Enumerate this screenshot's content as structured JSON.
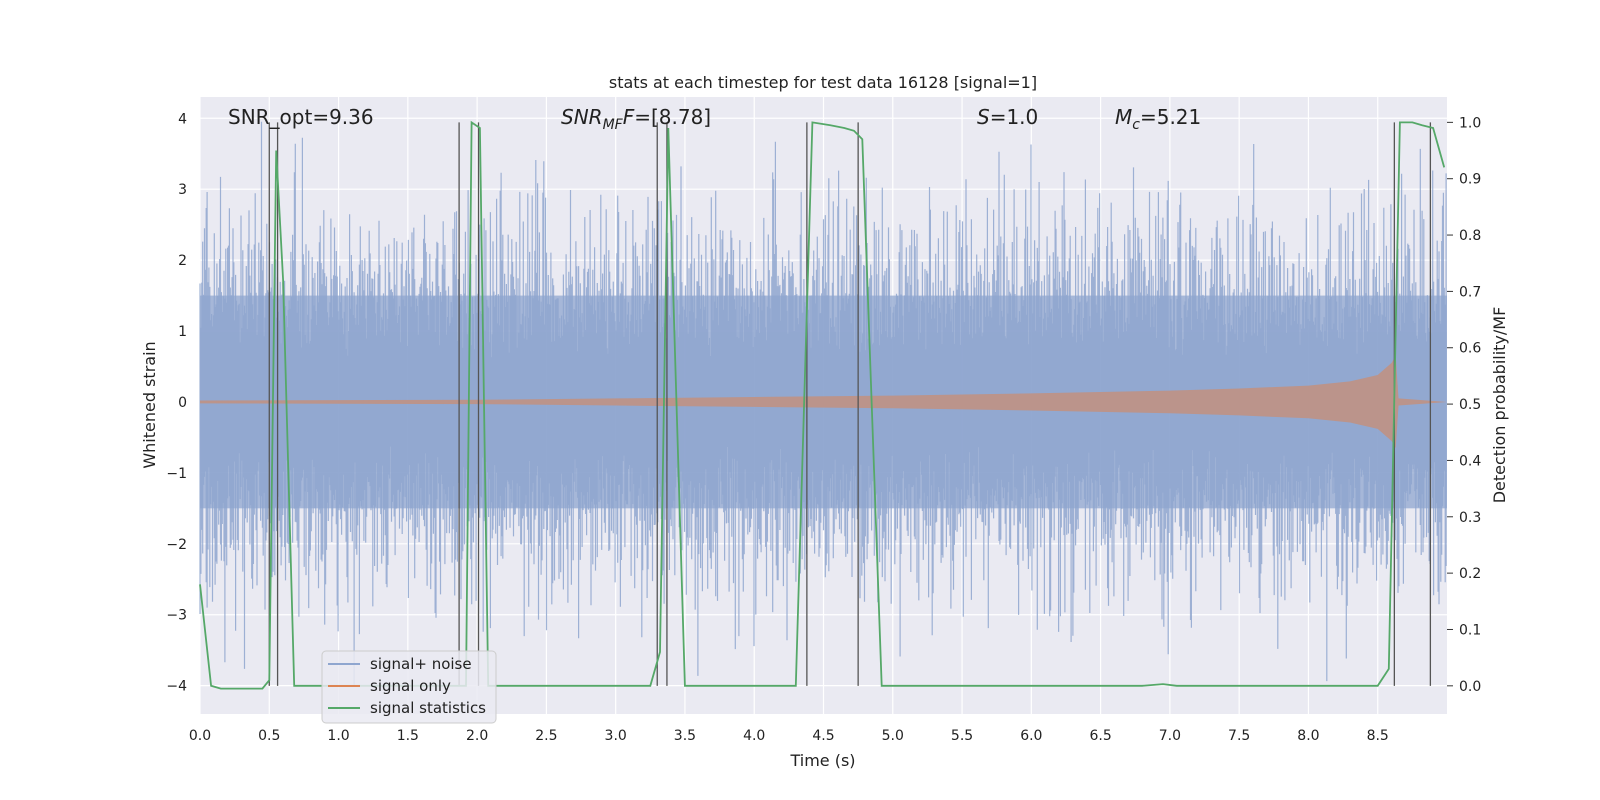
{
  "chart_data": {
    "type": "line",
    "title": "stats at each timestep for test data 16128 [signal=1]",
    "xlabel": "Time (s)",
    "ylabel": "Whitened strain",
    "ylabel_right": "Detection probability/MF",
    "xlim": [
      0.0,
      9.0
    ],
    "ylim": [
      -4.4,
      4.3
    ],
    "ylim_right": [
      -0.05,
      1.045
    ],
    "x_ticks": [
      "0.0",
      "0.5",
      "1.0",
      "1.5",
      "2.0",
      "2.5",
      "3.0",
      "3.5",
      "4.0",
      "4.5",
      "5.0",
      "5.5",
      "6.0",
      "6.5",
      "7.0",
      "7.5",
      "8.0",
      "8.5"
    ],
    "y_ticks": [
      "4",
      "3",
      "2",
      "1",
      "0",
      "−1",
      "−2",
      "−3",
      "−4"
    ],
    "y_ticks_right": [
      "1.0",
      "0.9",
      "0.8",
      "0.7",
      "0.6",
      "0.5",
      "0.4",
      "0.3",
      "0.2",
      "0.1",
      "0.0"
    ],
    "grid": true,
    "legend_position": "lower-left",
    "annotations": {
      "snr_opt": "SNR_opt=9.36",
      "snr_mf_label": "SNR",
      "snr_mf_sub": "MF",
      "snr_mf_value": "=[8.78]",
      "s_label": "S",
      "s_value": "=1.0",
      "mc_label": "M",
      "mc_sub": "c",
      "mc_value": "=5.21"
    },
    "series": [
      {
        "name": "signal+ noise",
        "color": "#8fa6cf",
        "description_points": "dense whitened noise, amplitude roughly between -3.5 and 3.9",
        "values": []
      },
      {
        "name": "signal only",
        "color": "#dd8452",
        "envelope": [
          [
            0.0,
            0.02
          ],
          [
            2.0,
            0.03
          ],
          [
            3.0,
            0.05
          ],
          [
            4.0,
            0.07
          ],
          [
            5.0,
            0.09
          ],
          [
            6.0,
            0.12
          ],
          [
            7.0,
            0.16
          ],
          [
            7.5,
            0.19
          ],
          [
            8.0,
            0.23
          ],
          [
            8.3,
            0.29
          ],
          [
            8.5,
            0.38
          ],
          [
            8.6,
            0.55
          ],
          [
            8.63,
            0.65
          ],
          [
            8.65,
            0.05
          ],
          [
            9.0,
            0.0
          ]
        ]
      },
      {
        "name": "signal statistics",
        "color": "#55a868",
        "points": [
          [
            0.0,
            0.18
          ],
          [
            0.08,
            0.0
          ],
          [
            0.15,
            -0.005
          ],
          [
            0.45,
            -0.005
          ],
          [
            0.5,
            0.01
          ],
          [
            0.55,
            0.95
          ],
          [
            0.6,
            0.72
          ],
          [
            0.68,
            0.0
          ],
          [
            1.8,
            0.0
          ],
          [
            1.92,
            0.0
          ],
          [
            1.96,
            1.0
          ],
          [
            2.02,
            0.99
          ],
          [
            2.08,
            0.0
          ],
          [
            3.25,
            0.0
          ],
          [
            3.32,
            0.06
          ],
          [
            3.38,
            0.99
          ],
          [
            3.5,
            0.0
          ],
          [
            4.3,
            0.0
          ],
          [
            4.42,
            1.0
          ],
          [
            4.55,
            0.995
          ],
          [
            4.65,
            0.99
          ],
          [
            4.72,
            0.985
          ],
          [
            4.78,
            0.97
          ],
          [
            4.92,
            0.0
          ],
          [
            6.8,
            0.0
          ],
          [
            6.95,
            0.003
          ],
          [
            7.05,
            0.0
          ],
          [
            8.5,
            0.0
          ],
          [
            8.58,
            0.03
          ],
          [
            8.66,
            1.0
          ],
          [
            8.75,
            1.0
          ],
          [
            8.82,
            0.995
          ],
          [
            8.9,
            0.99
          ],
          [
            8.98,
            0.92
          ]
        ]
      }
    ],
    "detection_markers": [
      0.5,
      0.56,
      1.87,
      2.01,
      3.3,
      3.37,
      4.38,
      4.75,
      8.62,
      8.88
    ],
    "legend": [
      "signal+ noise",
      "signal only",
      "signal statistics"
    ]
  }
}
